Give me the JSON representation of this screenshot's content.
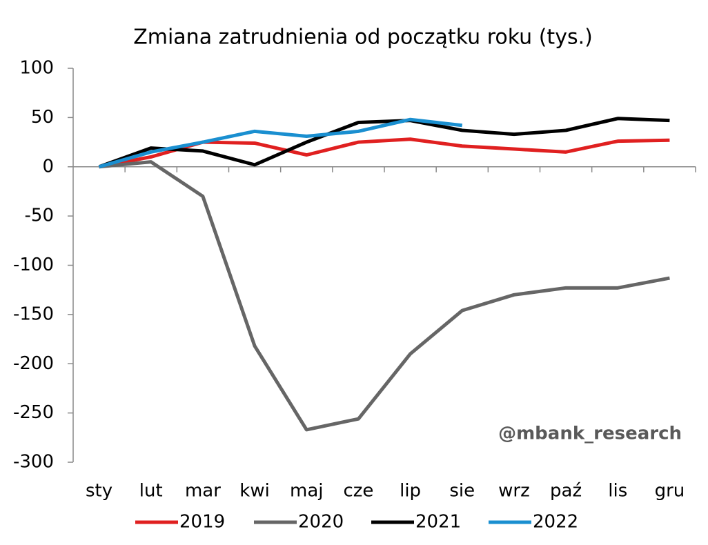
{
  "chart_data": {
    "type": "line",
    "title": "Zmiana zatrudnienia od początku roku (tys.)",
    "annotation": "@mbank_research",
    "categories": [
      "sty",
      "lut",
      "mar",
      "kwi",
      "maj",
      "cze",
      "lip",
      "sie",
      "wrz",
      "paź",
      "lis",
      "gru"
    ],
    "series": [
      {
        "name": "2019",
        "color": "#e02020",
        "values": [
          0,
          10,
          25,
          24,
          12,
          25,
          28,
          21,
          18,
          15,
          26,
          27
        ]
      },
      {
        "name": "2020",
        "color": "#666666",
        "values": [
          0,
          5,
          -30,
          -182,
          -267,
          -256,
          -190,
          -146,
          -130,
          -123,
          -123,
          -113
        ]
      },
      {
        "name": "2021",
        "color": "#000000",
        "values": [
          0,
          19,
          16,
          2,
          25,
          45,
          47,
          37,
          33,
          37,
          49,
          47
        ]
      },
      {
        "name": "2022",
        "color": "#1a8fd0",
        "values": [
          0,
          15,
          25,
          36,
          31,
          36,
          48,
          42,
          null,
          null,
          null,
          null
        ]
      }
    ],
    "ylim": [
      -300,
      100
    ],
    "yticks": [
      -300,
      -250,
      -200,
      -150,
      -100,
      -50,
      0,
      50,
      100
    ],
    "grid": false,
    "legend": "bottom"
  }
}
